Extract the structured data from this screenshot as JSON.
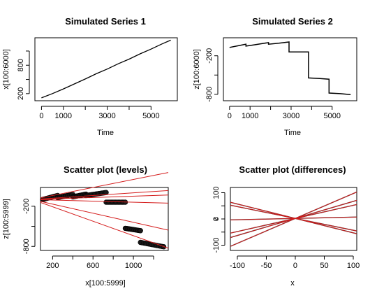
{
  "colors": {
    "fit_line": "#d41c1c",
    "series": "#000000"
  },
  "chart_data": [
    {
      "type": "line",
      "title": "Simulated Series 1",
      "xlabel": "Time",
      "ylabel": "x[100:6000]",
      "xlim": [
        -300,
        6200
      ],
      "ylim": [
        50,
        1380
      ],
      "xticks": [
        0,
        1000,
        3000,
        5000
      ],
      "xticks_minor": [
        2000,
        4000
      ],
      "yticks": [
        200,
        800
      ],
      "yticks_minor": [
        500,
        1100
      ],
      "x": [
        0,
        500,
        1000,
        1500,
        2000,
        2500,
        3000,
        3500,
        4000,
        4500,
        5000,
        5500,
        5900
      ],
      "y": [
        110,
        200,
        300,
        405,
        510,
        620,
        720,
        830,
        930,
        1040,
        1140,
        1250,
        1330
      ]
    },
    {
      "type": "line",
      "title": "Simulated Series 2",
      "xlabel": "Time",
      "ylabel": "z[100:6000]",
      "xlim": [
        -300,
        6200
      ],
      "ylim": [
        -900,
        80
      ],
      "xticks": [
        0,
        1000,
        3000,
        5000
      ],
      "xticks_minor": [
        2000,
        4000
      ],
      "yticks": [
        -200,
        -800
      ],
      "yticks_minor": [
        -500
      ],
      "x": [
        0,
        400,
        800,
        800,
        1200,
        1600,
        1900,
        1900,
        2400,
        2900,
        2900,
        3400,
        3850,
        3850,
        4400,
        4850,
        4850,
        5400,
        5900
      ],
      "y": [
        -70,
        -45,
        -20,
        -50,
        -30,
        -10,
        5,
        -20,
        -5,
        15,
        -140,
        -140,
        -140,
        -545,
        -555,
        -565,
        -780,
        -790,
        -805
      ]
    },
    {
      "type": "scatter",
      "title": "Scatter plot (levels)",
      "xlabel": "x[100:5999]",
      "ylabel": "z[100:5999]",
      "xlim": [
        80,
        1345
      ],
      "ylim": [
        -860,
        80
      ],
      "xticks": [
        200,
        600,
        1000
      ],
      "xticks_minor": [
        400,
        800,
        1200
      ],
      "yticks": [
        -200,
        -800
      ],
      "yticks_minor": [
        -500
      ],
      "clusters": [
        {
          "x": [
            100,
            250
          ],
          "y": [
            -100,
            -40
          ]
        },
        {
          "x": [
            250,
            400
          ],
          "y": [
            -70,
            -25
          ]
        },
        {
          "x": [
            400,
            530
          ],
          "y": [
            -60,
            -20
          ]
        },
        {
          "x": [
            530,
            730
          ],
          "y": [
            -40,
            5
          ]
        },
        {
          "x": [
            730,
            920
          ],
          "y": [
            -140,
            -140
          ]
        },
        {
          "x": [
            920,
            1070
          ],
          "y": [
            -530,
            -565
          ]
        },
        {
          "x": [
            1070,
            1300
          ],
          "y": [
            -740,
            -805
          ]
        }
      ],
      "fit_lines": [
        {
          "intercept": -100,
          "slope": 0.3
        },
        {
          "intercept": -100,
          "slope": 0.1
        },
        {
          "intercept": -100,
          "slope": 0.05
        },
        {
          "intercept": -100,
          "slope": -0.04
        },
        {
          "intercept": -100,
          "slope": -0.34
        },
        {
          "intercept": -100,
          "slope": -0.54
        }
      ]
    },
    {
      "type": "scatter",
      "title": "Scatter plot (differences)",
      "xlabel": "x",
      "ylabel": "z",
      "xlim": [
        -112,
        106
      ],
      "ylim": [
        -120,
        120
      ],
      "xticks": [
        -100,
        -50,
        0,
        50,
        100
      ],
      "yticks": [
        -100,
        0,
        100
      ],
      "yticks_minor": [
        -50,
        50
      ],
      "x": [
        -100,
        100
      ],
      "y": [
        0,
        0
      ],
      "fit_lines": [
        {
          "intercept": 2,
          "slope": 0.95
        },
        {
          "intercept": 2,
          "slope": 0.65
        },
        {
          "intercept": 2,
          "slope": 0.5
        },
        {
          "intercept": 2,
          "slope": 0.05
        },
        {
          "intercept": 2,
          "slope": -0.45
        },
        {
          "intercept": 2,
          "slope": -0.55
        }
      ]
    }
  ]
}
